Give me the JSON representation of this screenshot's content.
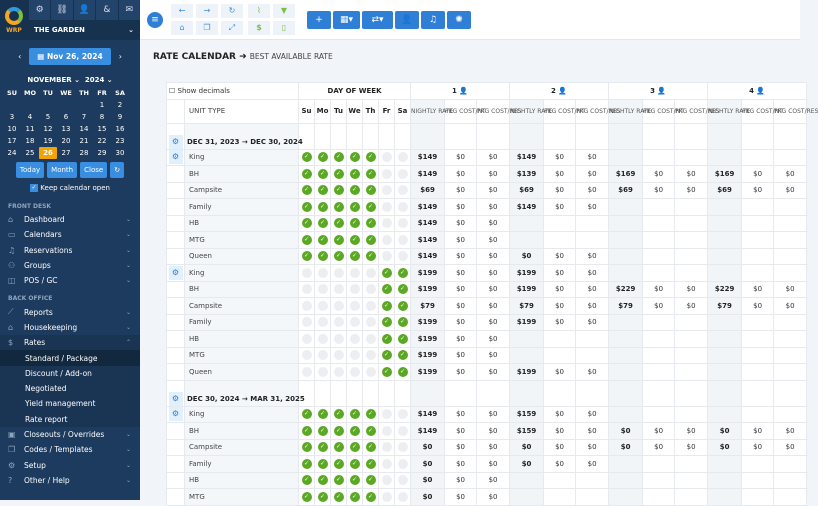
{
  "sidebar": {
    "logo_text": "WRP",
    "property": "THE GARDEN",
    "date": "Nov 26, 2024",
    "month": "NOVEMBER",
    "year": "2024",
    "weekdays": [
      "SU",
      "MO",
      "TU",
      "WE",
      "TH",
      "FR",
      "SA"
    ],
    "selected_day": 26,
    "days_in_month": 30,
    "first_weekday": 5,
    "buttons": [
      "Today",
      "Month",
      "Close"
    ],
    "keep_open": "Keep calendar open",
    "sections": [
      {
        "title": "FRONT DESK",
        "items": [
          {
            "label": "Dashboard",
            "icon": "home"
          },
          {
            "label": "Calendars",
            "icon": "calendar",
            "chevron": true
          },
          {
            "label": "Reservations",
            "icon": "bell",
            "chevron": true
          },
          {
            "label": "Groups",
            "icon": "users",
            "chevron": true
          },
          {
            "label": "POS / GC",
            "icon": "bag",
            "chevron": true
          }
        ]
      },
      {
        "title": "BACK OFFICE",
        "items": [
          {
            "label": "Reports",
            "icon": "chart",
            "chevron": true
          },
          {
            "label": "Housekeeping",
            "icon": "broom",
            "chevron": true
          },
          {
            "label": "Rates",
            "icon": "dollar",
            "open": true,
            "sub": [
              "Standard / Package",
              "Discount / Add-on",
              "Negotiated",
              "Yield management",
              "Rate report"
            ]
          },
          {
            "label": "Closeouts / Overrides",
            "icon": "lock",
            "chevron": true
          },
          {
            "label": "Codes / Templates",
            "icon": "copy",
            "chevron": true
          },
          {
            "label": "Setup",
            "icon": "gear",
            "chevron": true
          },
          {
            "label": "Other / Help",
            "icon": "question",
            "chevron": true
          }
        ]
      }
    ],
    "active_sub": "Standard / Package"
  },
  "header": {
    "title": "RATE CALENDAR",
    "subtitle": "BEST AVAILABLE RATE"
  },
  "table": {
    "show_decimals": "Show decimals",
    "day_of_week": "DAY OF WEEK",
    "unit_type": "UNIT TYPE",
    "days": [
      "Su",
      "Mo",
      "Tu",
      "We",
      "Th",
      "Fr",
      "Sa"
    ],
    "occupancy": [
      "1",
      "2",
      "3",
      "4"
    ],
    "subcols": [
      "NIGHTLY RATE",
      "PKG COST/NT",
      "PKG COST/RES"
    ],
    "blocks": [
      {
        "period": "DEC 31, 2023 → DEC 30, 2024",
        "days": [
          1,
          1,
          1,
          1,
          1,
          0,
          0
        ],
        "rows": [
          {
            "unit": "King",
            "rates": [
              [
                "$149",
                "$0",
                "$0"
              ],
              [
                "$149",
                "$0",
                "$0"
              ],
              null,
              null
            ]
          },
          {
            "unit": "BH",
            "rates": [
              [
                "$149",
                "$0",
                "$0"
              ],
              [
                "$139",
                "$0",
                "$0"
              ],
              [
                "$169",
                "$0",
                "$0"
              ],
              [
                "$169",
                "$0",
                "$0"
              ]
            ]
          },
          {
            "unit": "Campsite",
            "rates": [
              [
                "$69",
                "$0",
                "$0"
              ],
              [
                "$69",
                "$0",
                "$0"
              ],
              [
                "$69",
                "$0",
                "$0"
              ],
              [
                "$69",
                "$0",
                "$0"
              ]
            ]
          },
          {
            "unit": "Family",
            "rates": [
              [
                "$149",
                "$0",
                "$0"
              ],
              [
                "$149",
                "$0",
                "$0"
              ],
              null,
              null
            ]
          },
          {
            "unit": "HB",
            "rates": [
              [
                "$149",
                "$0",
                "$0"
              ],
              null,
              null,
              null
            ]
          },
          {
            "unit": "MTG",
            "rates": [
              [
                "$149",
                "$0",
                "$0"
              ],
              null,
              null,
              null
            ]
          },
          {
            "unit": "Queen",
            "rates": [
              [
                "$149",
                "$0",
                "$0"
              ],
              [
                "$0",
                "$0",
                "$0"
              ],
              null,
              null
            ]
          }
        ]
      },
      {
        "period": "",
        "days": [
          0,
          0,
          0,
          0,
          0,
          1,
          1
        ],
        "rows": [
          {
            "unit": "King",
            "rates": [
              [
                "$199",
                "$0",
                "$0"
              ],
              [
                "$199",
                "$0",
                "$0"
              ],
              null,
              null
            ]
          },
          {
            "unit": "BH",
            "rates": [
              [
                "$199",
                "$0",
                "$0"
              ],
              [
                "$199",
                "$0",
                "$0"
              ],
              [
                "$229",
                "$0",
                "$0"
              ],
              [
                "$229",
                "$0",
                "$0"
              ]
            ]
          },
          {
            "unit": "Campsite",
            "rates": [
              [
                "$79",
                "$0",
                "$0"
              ],
              [
                "$79",
                "$0",
                "$0"
              ],
              [
                "$79",
                "$0",
                "$0"
              ],
              [
                "$79",
                "$0",
                "$0"
              ]
            ]
          },
          {
            "unit": "Family",
            "rates": [
              [
                "$199",
                "$0",
                "$0"
              ],
              [
                "$199",
                "$0",
                "$0"
              ],
              null,
              null
            ]
          },
          {
            "unit": "HB",
            "rates": [
              [
                "$199",
                "$0",
                "$0"
              ],
              null,
              null,
              null
            ]
          },
          {
            "unit": "MTG",
            "rates": [
              [
                "$199",
                "$0",
                "$0"
              ],
              null,
              null,
              null
            ]
          },
          {
            "unit": "Queen",
            "rates": [
              [
                "$199",
                "$0",
                "$0"
              ],
              [
                "$199",
                "$0",
                "$0"
              ],
              null,
              null
            ]
          }
        ]
      },
      {
        "period": "DEC 30, 2024 → MAR 31, 2025",
        "days": [
          1,
          1,
          1,
          1,
          1,
          0,
          0
        ],
        "rows": [
          {
            "unit": "King",
            "rates": [
              [
                "$149",
                "$0",
                "$0"
              ],
              [
                "$159",
                "$0",
                "$0"
              ],
              null,
              null
            ]
          },
          {
            "unit": "BH",
            "rates": [
              [
                "$149",
                "$0",
                "$0"
              ],
              [
                "$159",
                "$0",
                "$0"
              ],
              [
                "$0",
                "$0",
                "$0"
              ],
              [
                "$0",
                "$0",
                "$0"
              ]
            ]
          },
          {
            "unit": "Campsite",
            "rates": [
              [
                "$0",
                "$0",
                "$0"
              ],
              [
                "$0",
                "$0",
                "$0"
              ],
              [
                "$0",
                "$0",
                "$0"
              ],
              [
                "$0",
                "$0",
                "$0"
              ]
            ]
          },
          {
            "unit": "Family",
            "rates": [
              [
                "$0",
                "$0",
                "$0"
              ],
              [
                "$0",
                "$0",
                "$0"
              ],
              null,
              null
            ]
          },
          {
            "unit": "HB",
            "rates": [
              [
                "$0",
                "$0",
                "$0"
              ],
              null,
              null,
              null
            ]
          },
          {
            "unit": "MTG",
            "rates": [
              [
                "$0",
                "$0",
                "$0"
              ],
              null,
              null,
              null
            ]
          }
        ]
      }
    ]
  },
  "colors": {
    "sidebar": "#1d3b5e",
    "accent": "#2f7fd6",
    "check": "#5aa823",
    "today": "#f5a300"
  }
}
